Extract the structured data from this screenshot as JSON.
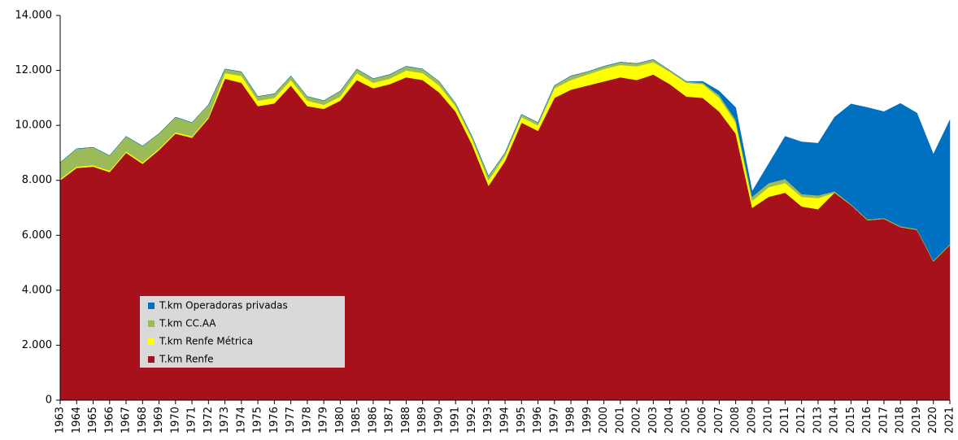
{
  "chart_data": {
    "type": "stacked_area",
    "categories": [
      "1963",
      "1964",
      "1965",
      "1966",
      "1967",
      "1968",
      "1969",
      "1970",
      "1971",
      "1972",
      "1973",
      "1974",
      "1975",
      "1976",
      "1977",
      "1978",
      "1979",
      "1980",
      "1985",
      "1986",
      "1987",
      "1988",
      "1989",
      "1990",
      "1991",
      "1992",
      "1993",
      "1994",
      "1995",
      "1996",
      "1997",
      "1998",
      "1999",
      "2000",
      "2001",
      "2002",
      "2003",
      "2004",
      "2005",
      "2006",
      "2007",
      "2008",
      "2009",
      "2010",
      "2011",
      "2012",
      "2013",
      "2014",
      "2015",
      "2016",
      "2017",
      "2018",
      "2019",
      "2020",
      "2021"
    ],
    "series": [
      {
        "name": "T.km Renfe",
        "color": "#a6111c",
        "values": [
          8000,
          8450,
          8500,
          8300,
          9000,
          8600,
          9100,
          9700,
          9550,
          10250,
          11700,
          11550,
          10700,
          10800,
          11450,
          10700,
          10600,
          10900,
          11650,
          11350,
          11500,
          11750,
          11650,
          11200,
          10500,
          9300,
          7800,
          8700,
          10100,
          9800,
          11000,
          11300,
          11450,
          11600,
          11750,
          11650,
          11850,
          11500,
          11050,
          11000,
          10500,
          9700,
          7000,
          7400,
          7550,
          7050,
          6950,
          7550,
          7100,
          6550,
          6600,
          6300,
          6200,
          5050,
          5650
        ]
      },
      {
        "name": "T.km Renfe Métrica",
        "color": "#ffff00",
        "values": [
          50,
          50,
          50,
          50,
          50,
          50,
          50,
          50,
          50,
          50,
          200,
          250,
          200,
          200,
          200,
          200,
          150,
          150,
          250,
          200,
          200,
          250,
          250,
          250,
          200,
          200,
          200,
          200,
          200,
          200,
          350,
          350,
          400,
          450,
          450,
          500,
          450,
          450,
          500,
          500,
          500,
          400,
          250,
          350,
          350,
          350,
          400,
          0,
          0,
          0,
          0,
          0,
          0,
          0,
          0
        ]
      },
      {
        "name": "T.km CC.AA",
        "color": "#9bbb59",
        "values": [
          600,
          650,
          650,
          550,
          550,
          600,
          550,
          550,
          500,
          450,
          150,
          150,
          150,
          150,
          150,
          150,
          150,
          200,
          150,
          150,
          150,
          150,
          150,
          150,
          100,
          100,
          150,
          100,
          100,
          100,
          100,
          150,
          100,
          100,
          100,
          100,
          100,
          50,
          50,
          50,
          100,
          100,
          150,
          150,
          150,
          100,
          100,
          50,
          30,
          30,
          30,
          30,
          30,
          30,
          30
        ]
      },
      {
        "name": "T.km Operadoras privadas",
        "color": "#0070c0",
        "values": [
          0,
          0,
          0,
          0,
          0,
          0,
          0,
          0,
          0,
          0,
          0,
          0,
          0,
          0,
          0,
          0,
          0,
          0,
          0,
          0,
          0,
          0,
          0,
          0,
          0,
          0,
          0,
          0,
          0,
          0,
          0,
          0,
          0,
          0,
          0,
          0,
          0,
          0,
          0,
          50,
          150,
          450,
          200,
          700,
          1550,
          1900,
          1900,
          2700,
          3650,
          4070,
          3870,
          4470,
          4220,
          3870,
          4520
        ]
      }
    ],
    "ylim": [
      0,
      14000
    ],
    "yticks": [
      0,
      {
        "value": 2000,
        "label": "2.000"
      },
      {
        "value": 4000,
        "label": "4.000"
      },
      {
        "value": 6000,
        "label": "6.000"
      },
      {
        "value": 8000,
        "label": "8.000"
      },
      {
        "value": 10000,
        "label": "10.000"
      },
      {
        "value": 12000,
        "label": "12.000"
      },
      {
        "value": 14000,
        "label": "14.000"
      }
    ],
    "legend_order": [
      3,
      2,
      1,
      0
    ]
  }
}
